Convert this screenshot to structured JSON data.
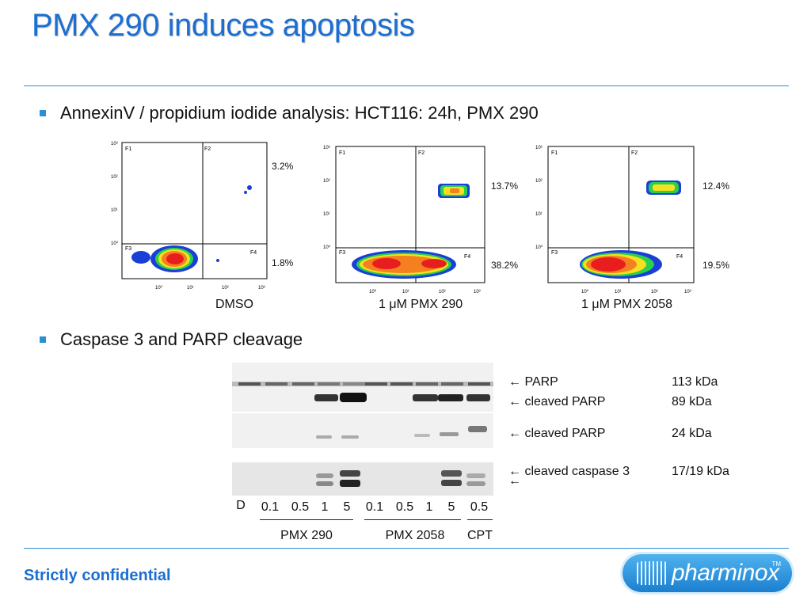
{
  "slide": {
    "title": "PMX 290 induces apoptosis",
    "bullet1": "AnnexinV / propidium iodide analysis: HCT116: 24h, PMX 290",
    "bullet2": "Caspase 3 and PARP cleavage",
    "footer": "Strictly confidential",
    "accent_color": "#1b6fd1"
  },
  "flow_plots": [
    {
      "label": "DMSO",
      "upper_right_pct": "3.2%",
      "lower_right_pct": "1.8%",
      "quadrants": [
        "F1",
        "F2",
        "F3",
        "F4"
      ],
      "ticks": [
        "10⁰",
        "10¹",
        "10²",
        "10³"
      ]
    },
    {
      "label": "1 μM PMX 290",
      "upper_right_pct": "13.7%",
      "lower_right_pct": "38.2%",
      "quadrants": [
        "F1",
        "F2",
        "F3",
        "F4"
      ],
      "ticks": [
        "10⁰",
        "10¹",
        "10²",
        "10³"
      ]
    },
    {
      "label": "1 μM PMX 2058",
      "upper_right_pct": "12.4%",
      "lower_right_pct": "19.5%",
      "quadrants": [
        "F1",
        "F2",
        "F3",
        "F4"
      ],
      "ticks": [
        "10⁰",
        "10¹",
        "10²",
        "10³"
      ]
    }
  ],
  "blot": {
    "bands": [
      {
        "arrow": "←",
        "name": "PARP",
        "kda": "113 kDa"
      },
      {
        "arrow": "←",
        "name": "cleaved PARP",
        "kda": "89 kDa"
      },
      {
        "arrow": "←",
        "name": "cleaved PARP",
        "kda": "24 kDa"
      },
      {
        "arrow": "←",
        "name": "cleaved caspase 3",
        "kda": "17/19 kDa"
      }
    ],
    "extra_arrow": "←",
    "lanes": [
      "D",
      "0.1",
      "0.5",
      "1",
      "5",
      "0.1",
      "0.5",
      "1",
      "5",
      "0.5"
    ],
    "groups": [
      "PMX 290",
      "PMX 2058",
      "CPT"
    ]
  },
  "logo": {
    "text": "pharminox",
    "tm": "TM"
  }
}
